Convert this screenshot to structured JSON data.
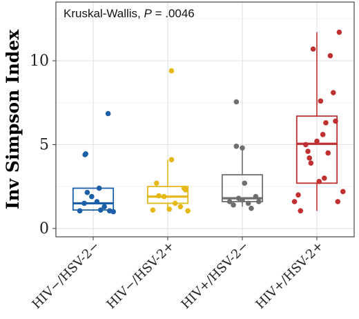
{
  "chart_data": {
    "type": "box",
    "title": "",
    "xlabel": "",
    "ylabel": "Inv Simpson Index",
    "ylim": [
      -0.5,
      13.5
    ],
    "yticks": [
      0,
      5,
      10
    ],
    "grid": true,
    "legend": "none",
    "annotation": {
      "prefix": "Kruskal-Wallis, ",
      "p_symbol": "P",
      "p_value": " = .0046"
    },
    "categories": [
      "HIV−/HSV-2−",
      "HIV−/HSV-2+",
      "HIV+/HSV-2−",
      "HIV+/HSV-2+"
    ],
    "colors": [
      "#1a5fa8",
      "#e6b817",
      "#6e6e6e",
      "#c03030"
    ],
    "boxes": [
      {
        "q1": 1.1,
        "median": 1.5,
        "q3": 2.4,
        "whisker_low": 1.05,
        "whisker_high": 2.4
      },
      {
        "q1": 1.5,
        "median": 1.9,
        "q3": 2.5,
        "whisker_low": 1.05,
        "whisker_high": 4.1
      },
      {
        "q1": 1.6,
        "median": 1.8,
        "q3": 3.2,
        "whisker_low": 1.3,
        "whisker_high": 4.9
      },
      {
        "q1": 2.7,
        "median": 5.05,
        "q3": 6.7,
        "whisker_low": 1.05,
        "whisker_high": 11.7
      }
    ],
    "points": [
      [
        {
          "x": -0.18,
          "y": 1.05
        },
        {
          "x": -0.08,
          "y": 2.15
        },
        {
          "x": -0.02,
          "y": 1.9
        },
        {
          "x": 0.05,
          "y": 1.6
        },
        {
          "x": 0.1,
          "y": 1.1
        },
        {
          "x": 0.15,
          "y": 1.3
        },
        {
          "x": 0.22,
          "y": 1.05
        },
        {
          "x": 0.27,
          "y": 1.0
        },
        {
          "x": -0.12,
          "y": 1.5
        },
        {
          "x": 0.08,
          "y": 2.4
        },
        {
          "x": -0.1,
          "y": 4.45
        },
        {
          "x": -0.11,
          "y": 4.4
        },
        {
          "x": 0.2,
          "y": 6.85
        }
      ],
      [
        {
          "x": -0.2,
          "y": 1.1
        },
        {
          "x": -0.15,
          "y": 2.7
        },
        {
          "x": -0.05,
          "y": 1.9
        },
        {
          "x": 0.02,
          "y": 1.15
        },
        {
          "x": 0.05,
          "y": 4.1
        },
        {
          "x": 0.1,
          "y": 1.5
        },
        {
          "x": 0.17,
          "y": 1.3
        },
        {
          "x": 0.22,
          "y": 2.4
        },
        {
          "x": 0.27,
          "y": 1.05
        },
        {
          "x": 0.24,
          "y": 2.3
        },
        {
          "x": -0.12,
          "y": 1.95
        },
        {
          "x": 0.05,
          "y": 9.4
        }
      ],
      [
        {
          "x": -0.17,
          "y": 1.6
        },
        {
          "x": -0.12,
          "y": 1.4
        },
        {
          "x": -0.08,
          "y": 4.9
        },
        {
          "x": 0.0,
          "y": 4.8
        },
        {
          "x": 0.03,
          "y": 2.7
        },
        {
          "x": 0.08,
          "y": 1.5
        },
        {
          "x": 0.12,
          "y": 1.2
        },
        {
          "x": 0.18,
          "y": 1.9
        },
        {
          "x": 0.22,
          "y": 1.6
        },
        {
          "x": 0.0,
          "y": 1.7
        },
        {
          "x": -0.05,
          "y": 1.8
        },
        {
          "x": -0.08,
          "y": 7.55
        }
      ],
      [
        {
          "x": -0.3,
          "y": 1.6
        },
        {
          "x": -0.25,
          "y": 2.0
        },
        {
          "x": -0.22,
          "y": 1.05
        },
        {
          "x": -0.15,
          "y": 5.0
        },
        {
          "x": -0.12,
          "y": 4.6
        },
        {
          "x": -0.08,
          "y": 3.9
        },
        {
          "x": -0.05,
          "y": 10.7
        },
        {
          "x": 0.0,
          "y": 5.2
        },
        {
          "x": 0.05,
          "y": 7.6
        },
        {
          "x": 0.08,
          "y": 5.6
        },
        {
          "x": 0.1,
          "y": 3.0
        },
        {
          "x": 0.12,
          "y": 6.3
        },
        {
          "x": 0.18,
          "y": 10.3
        },
        {
          "x": 0.22,
          "y": 8.1
        },
        {
          "x": 0.25,
          "y": 6.4
        },
        {
          "x": 0.28,
          "y": 1.6
        },
        {
          "x": 0.3,
          "y": 11.7
        },
        {
          "x": 0.35,
          "y": 2.2
        },
        {
          "x": -0.1,
          "y": 4.2
        },
        {
          "x": 0.03,
          "y": 2.8
        },
        {
          "x": 0.15,
          "y": 4.5
        }
      ]
    ]
  }
}
